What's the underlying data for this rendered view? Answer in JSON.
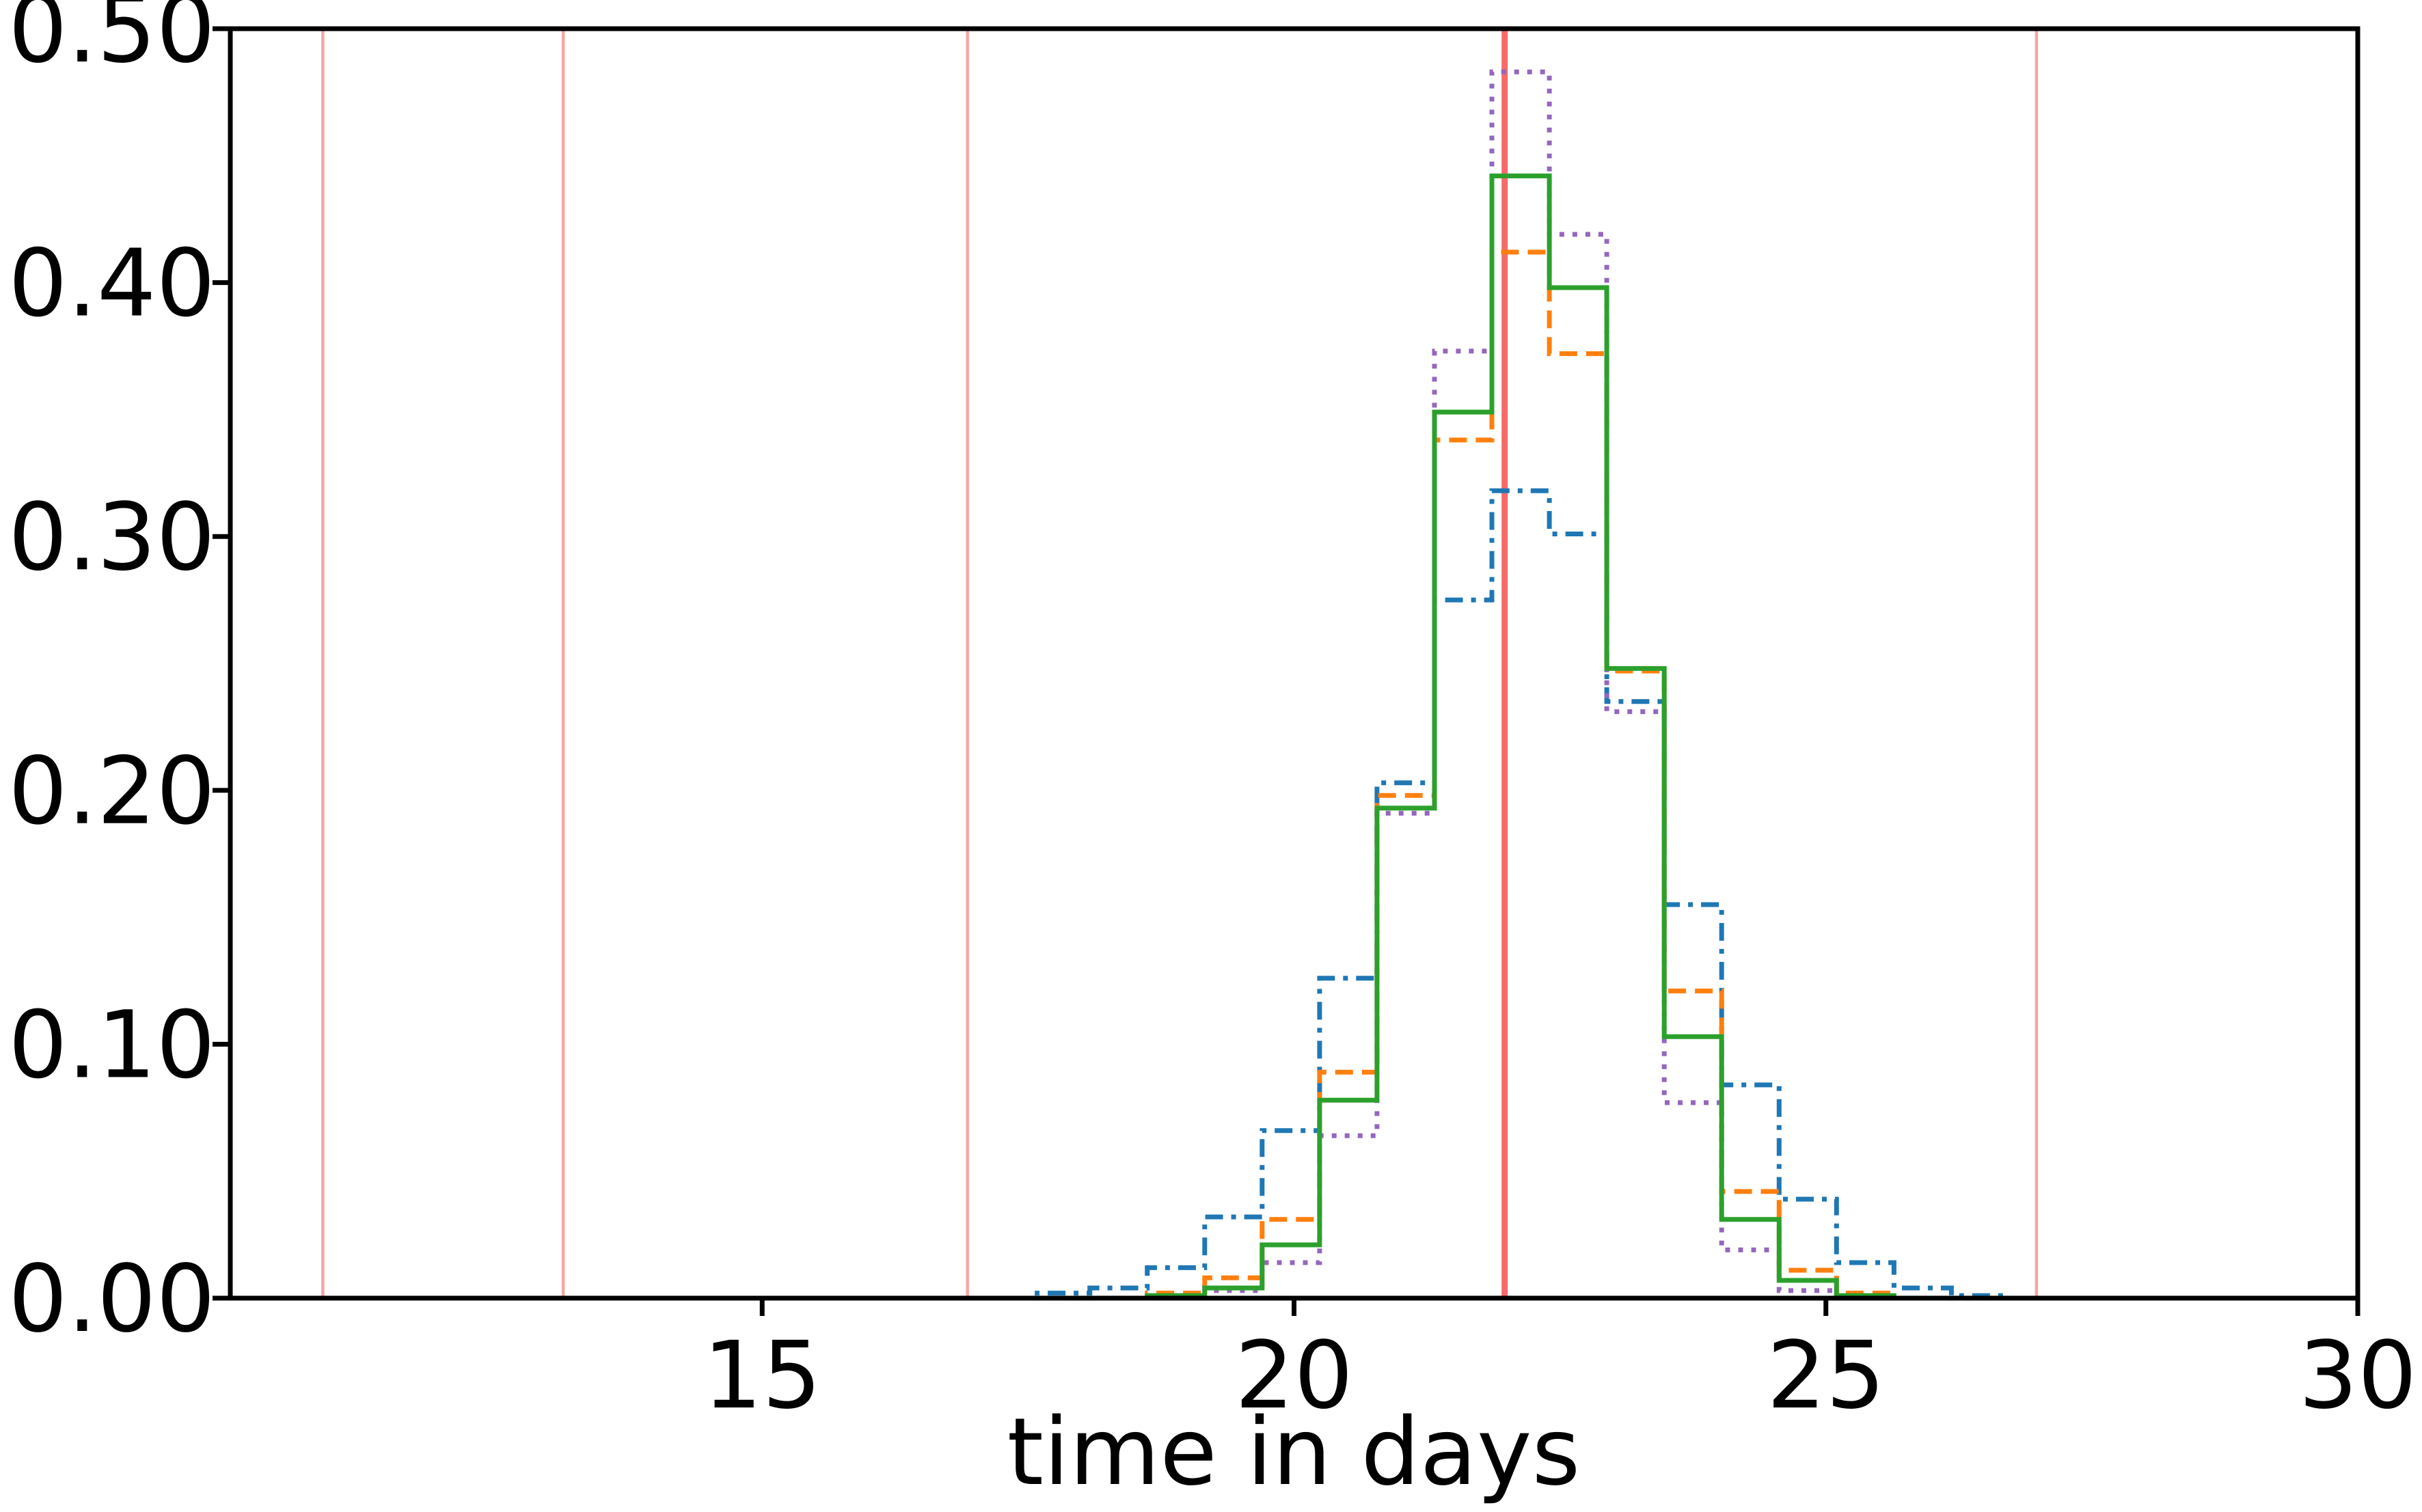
{
  "chart_data": {
    "type": "histogram",
    "title": "",
    "xlabel": "time in days",
    "ylabel": "",
    "xlim": [
      10,
      30
    ],
    "ylim": [
      0,
      0.5
    ],
    "x_ticks": [
      15,
      20,
      25,
      30
    ],
    "x_tick_labels": [
      "15",
      "20",
      "25",
      "30"
    ],
    "y_ticks": [
      0,
      0.1,
      0.2,
      0.3,
      0.4,
      0.5
    ],
    "y_tick_labels": [
      "0.00",
      "0.10",
      "0.20",
      "0.30",
      "0.40",
      "0.50"
    ],
    "grid": false,
    "legend": "none",
    "bin_edges": [
      17.0,
      17.54,
      18.08,
      18.62,
      19.16,
      19.7,
      20.24,
      20.78,
      21.32,
      21.86,
      22.4,
      22.94,
      23.48,
      24.02,
      24.56,
      25.1,
      25.64,
      26.18,
      26.72
    ],
    "series": [
      {
        "color": "#1f77b4",
        "linestyle": "dashdot",
        "values": [
          0.0,
          0.002,
          0.004,
          0.012,
          0.032,
          0.066,
          0.126,
          0.203,
          0.275,
          0.318,
          0.301,
          0.235,
          0.155,
          0.084,
          0.039,
          0.014,
          0.004,
          0.001
        ]
      },
      {
        "color": "#ff7f0e",
        "linestyle": "dashed",
        "values": [
          0.0,
          0.0,
          0.0,
          0.002,
          0.008,
          0.031,
          0.089,
          0.198,
          0.338,
          0.412,
          0.372,
          0.247,
          0.121,
          0.042,
          0.011,
          0.002,
          0.0,
          0.0
        ]
      },
      {
        "color": "#9467bd",
        "linestyle": "dotted",
        "values": [
          0.0,
          0.0,
          0.0,
          0.0,
          0.003,
          0.014,
          0.064,
          0.191,
          0.373,
          0.483,
          0.419,
          0.231,
          0.077,
          0.019,
          0.003,
          0.0,
          0.0,
          0.0
        ]
      },
      {
        "color": "#2ca02c",
        "linestyle": "solid",
        "values": [
          0.0,
          0.0,
          0.0,
          0.001,
          0.004,
          0.021,
          0.078,
          0.193,
          0.349,
          0.442,
          0.398,
          0.248,
          0.103,
          0.031,
          0.007,
          0.001,
          0.0,
          0.0
        ]
      }
    ],
    "vertical_lines": [
      {
        "x": 10.87,
        "color": "#f4a6a6",
        "weight": "thin"
      },
      {
        "x": 13.13,
        "color": "#f4a6a6",
        "weight": "thin"
      },
      {
        "x": 16.93,
        "color": "#f4a6a6",
        "weight": "thin"
      },
      {
        "x": 21.98,
        "color": "#f46b6b",
        "weight": "thick"
      },
      {
        "x": 26.98,
        "color": "#f4a6a6",
        "weight": "thin"
      }
    ]
  }
}
